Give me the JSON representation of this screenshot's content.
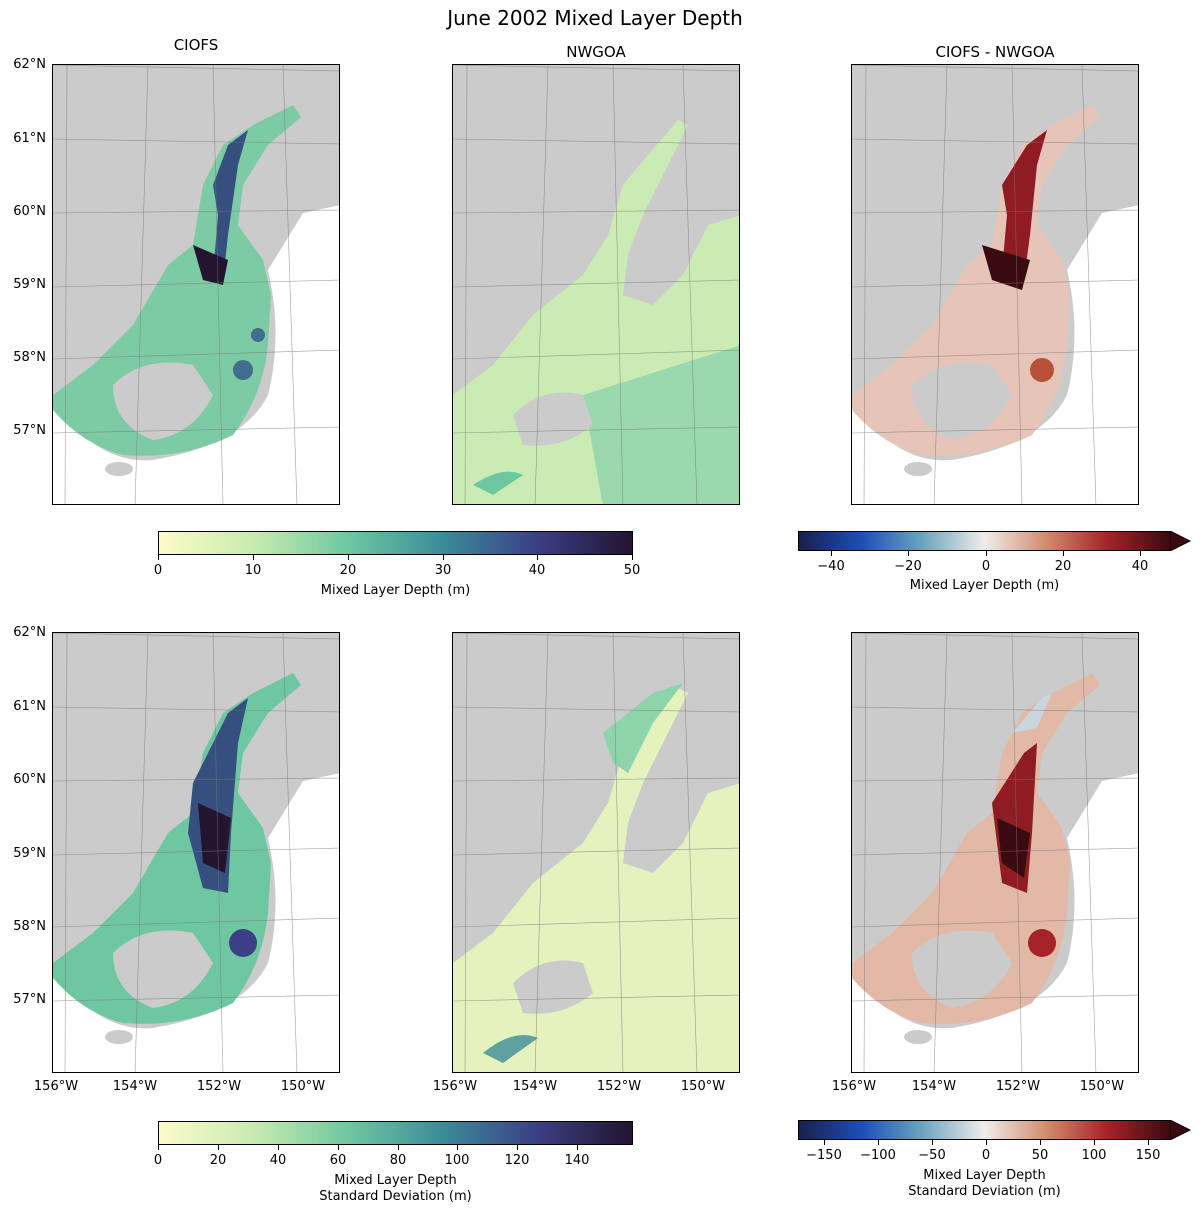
{
  "figure_title": "June 2002 Mixed Layer Depth",
  "columns": [
    "CIOFS",
    "NWGOA",
    "CIOFS - NWGOA"
  ],
  "lat_labels": [
    "62°N",
    "61°N",
    "60°N",
    "59°N",
    "58°N",
    "57°N"
  ],
  "lon_labels": [
    "156°W",
    "154°W",
    "152°W",
    "150°W"
  ],
  "colorbars": {
    "mean_seq": {
      "ticks": [
        "0",
        "10",
        "20",
        "30",
        "40",
        "50"
      ],
      "label": "Mixed Layer Depth (m)"
    },
    "mean_div": {
      "ticks": [
        "−40",
        "−20",
        "0",
        "20",
        "40"
      ],
      "label": "Mixed Layer Depth (m)"
    },
    "std_seq": {
      "ticks": [
        "0",
        "20",
        "40",
        "60",
        "80",
        "100",
        "120",
        "140"
      ],
      "label_line1": "Mixed Layer Depth",
      "label_line2": "Standard Deviation (m)"
    },
    "std_div": {
      "ticks": [
        "−150",
        "−100",
        "−50",
        "0",
        "50",
        "100",
        "150"
      ],
      "label_line1": "Mixed Layer Depth",
      "label_line2": "Standard Deviation (m)"
    }
  },
  "colors": {
    "land": "#cbcbcb",
    "seq_low": "#fdfbc9",
    "seq_mid": "#5fbf9e",
    "seq_high": "#231530",
    "div_low": "#1a1f4d",
    "div_mid": "#f0ecea",
    "div_high": "#3a0a10"
  }
}
